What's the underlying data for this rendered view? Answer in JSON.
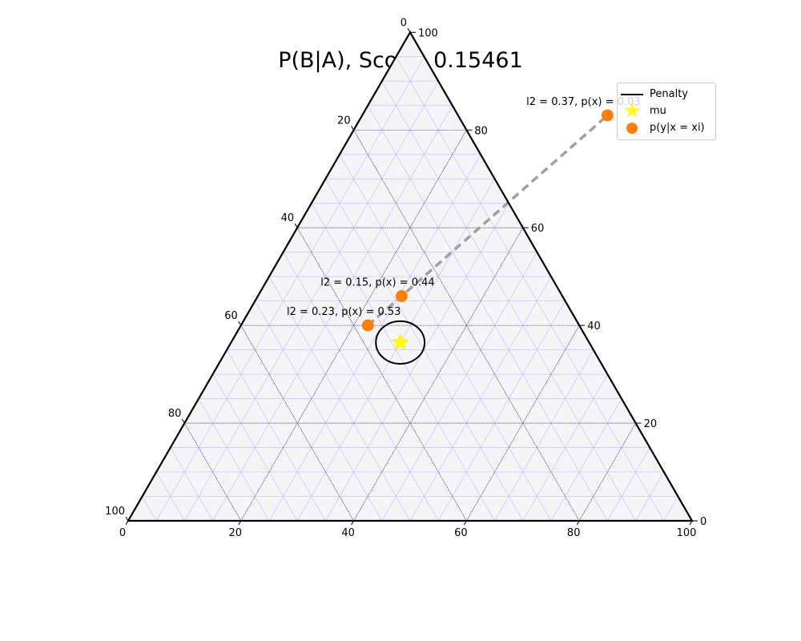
{
  "chart_data": {
    "type": "scatter",
    "subtype": "ternary",
    "title": "P(B|A), Score: 0.15461",
    "scale": 100,
    "axis_ticks": [
      "0",
      "20",
      "40",
      "60",
      "80",
      "100"
    ],
    "gridlines": true,
    "legend": {
      "placement": "top-right",
      "entries": [
        {
          "label": "Penalty",
          "marker": "line",
          "color": "#000000"
        },
        {
          "label": "mu",
          "marker": "star",
          "color": "#ffff00"
        },
        {
          "label": "p(y|x = xi)",
          "marker": "circle",
          "color": "#ff7f0e"
        }
      ]
    },
    "mu": {
      "bottom": 30,
      "right": 36.5
    },
    "penalty_radius": 6,
    "points": [
      {
        "bottom": 43.5,
        "right": 83,
        "label": "l2 = 0.37, p(x) = 0.03"
      },
      {
        "bottom": 25.5,
        "right": 46,
        "label": "l2 = 0.15, p(x) = 0.44"
      },
      {
        "bottom": 22.5,
        "right": 40,
        "label": "l2 = 0.23, p(x) = 0.53"
      }
    ],
    "colors": {
      "points": "#ff7f0e",
      "mu": "#ffff00",
      "dashed_line": "#a0a0a0",
      "fill": "#f5f5f7",
      "fine_grid": "#c8c8ff"
    }
  }
}
